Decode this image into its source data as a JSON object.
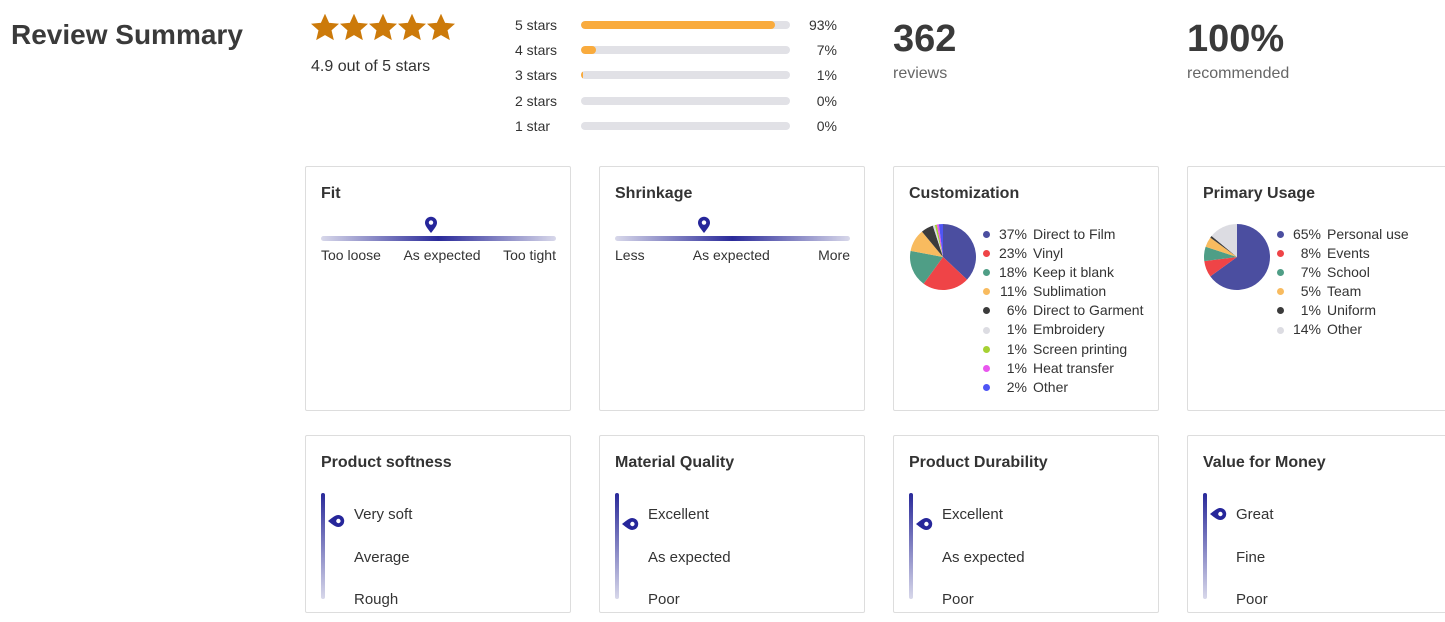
{
  "header": {
    "title": "Review Summary"
  },
  "rating": {
    "value": 4.9,
    "max": 5,
    "text": "4.9 out of 5 stars",
    "star_color": "#cc7a0a"
  },
  "histogram": [
    {
      "label": "5 stars",
      "percent": 93,
      "text": "93%"
    },
    {
      "label": "4 stars",
      "percent": 7,
      "text": "7%"
    },
    {
      "label": "3 stars",
      "percent": 1,
      "text": "1%"
    },
    {
      "label": "2 stars",
      "percent": 0,
      "text": "0%"
    },
    {
      "label": "1 star",
      "percent": 0,
      "text": "0%"
    }
  ],
  "reviews": {
    "count": "362",
    "label": "reviews"
  },
  "recommended": {
    "value": "100%",
    "label": "recommended"
  },
  "fit": {
    "title": "Fit",
    "labels": [
      "Too loose",
      "As expected",
      "Too tight"
    ],
    "position": 0.47
  },
  "shrinkage": {
    "title": "Shrinkage",
    "labels": [
      "Less",
      "As expected",
      "More"
    ],
    "position": 0.38
  },
  "customization": {
    "title": "Customization",
    "items": [
      {
        "pct": "37%",
        "value": 37,
        "label": "Direct to Film",
        "color": "#4b4ea0"
      },
      {
        "pct": "23%",
        "value": 23,
        "label": "Vinyl",
        "color": "#ef4447"
      },
      {
        "pct": "18%",
        "value": 18,
        "label": "Keep it blank",
        "color": "#4f9e86"
      },
      {
        "pct": "11%",
        "value": 11,
        "label": "Sublimation",
        "color": "#f8bb5f"
      },
      {
        "pct": "6%",
        "value": 6,
        "label": "Direct to Garment",
        "color": "#3b3b3b"
      },
      {
        "pct": "1%",
        "value": 1,
        "label": "Embroidery",
        "color": "#dcdce2"
      },
      {
        "pct": "1%",
        "value": 1,
        "label": "Screen printing",
        "color": "#a6d133"
      },
      {
        "pct": "1%",
        "value": 1,
        "label": "Heat transfer",
        "color": "#e956ee"
      },
      {
        "pct": "2%",
        "value": 2,
        "label": "Other",
        "color": "#4f55f5"
      }
    ]
  },
  "usage": {
    "title": "Primary Usage",
    "items": [
      {
        "pct": "65%",
        "value": 65,
        "label": "Personal use",
        "color": "#4b4ea0"
      },
      {
        "pct": "8%",
        "value": 8,
        "label": "Events",
        "color": "#ef4447"
      },
      {
        "pct": "7%",
        "value": 7,
        "label": "School",
        "color": "#4f9e86"
      },
      {
        "pct": "5%",
        "value": 5,
        "label": "Team",
        "color": "#f8bb5f"
      },
      {
        "pct": "1%",
        "value": 1,
        "label": "Uniform",
        "color": "#3b3b3b"
      },
      {
        "pct": "14%",
        "value": 14,
        "label": "Other",
        "color": "#dcdce2"
      }
    ]
  },
  "softness": {
    "title": "Product softness",
    "labels": [
      "Very soft",
      "Average",
      "Rough"
    ],
    "position": 0.26
  },
  "material": {
    "title": "Material Quality",
    "labels": [
      "Excellent",
      "As expected",
      "Poor"
    ],
    "position": 0.29
  },
  "durability": {
    "title": "Product Durability",
    "labels": [
      "Excellent",
      "As expected",
      "Poor"
    ],
    "position": 0.29
  },
  "value": {
    "title": "Value for Money",
    "labels": [
      "Great",
      "Fine",
      "Poor"
    ],
    "position": 0.2
  }
}
